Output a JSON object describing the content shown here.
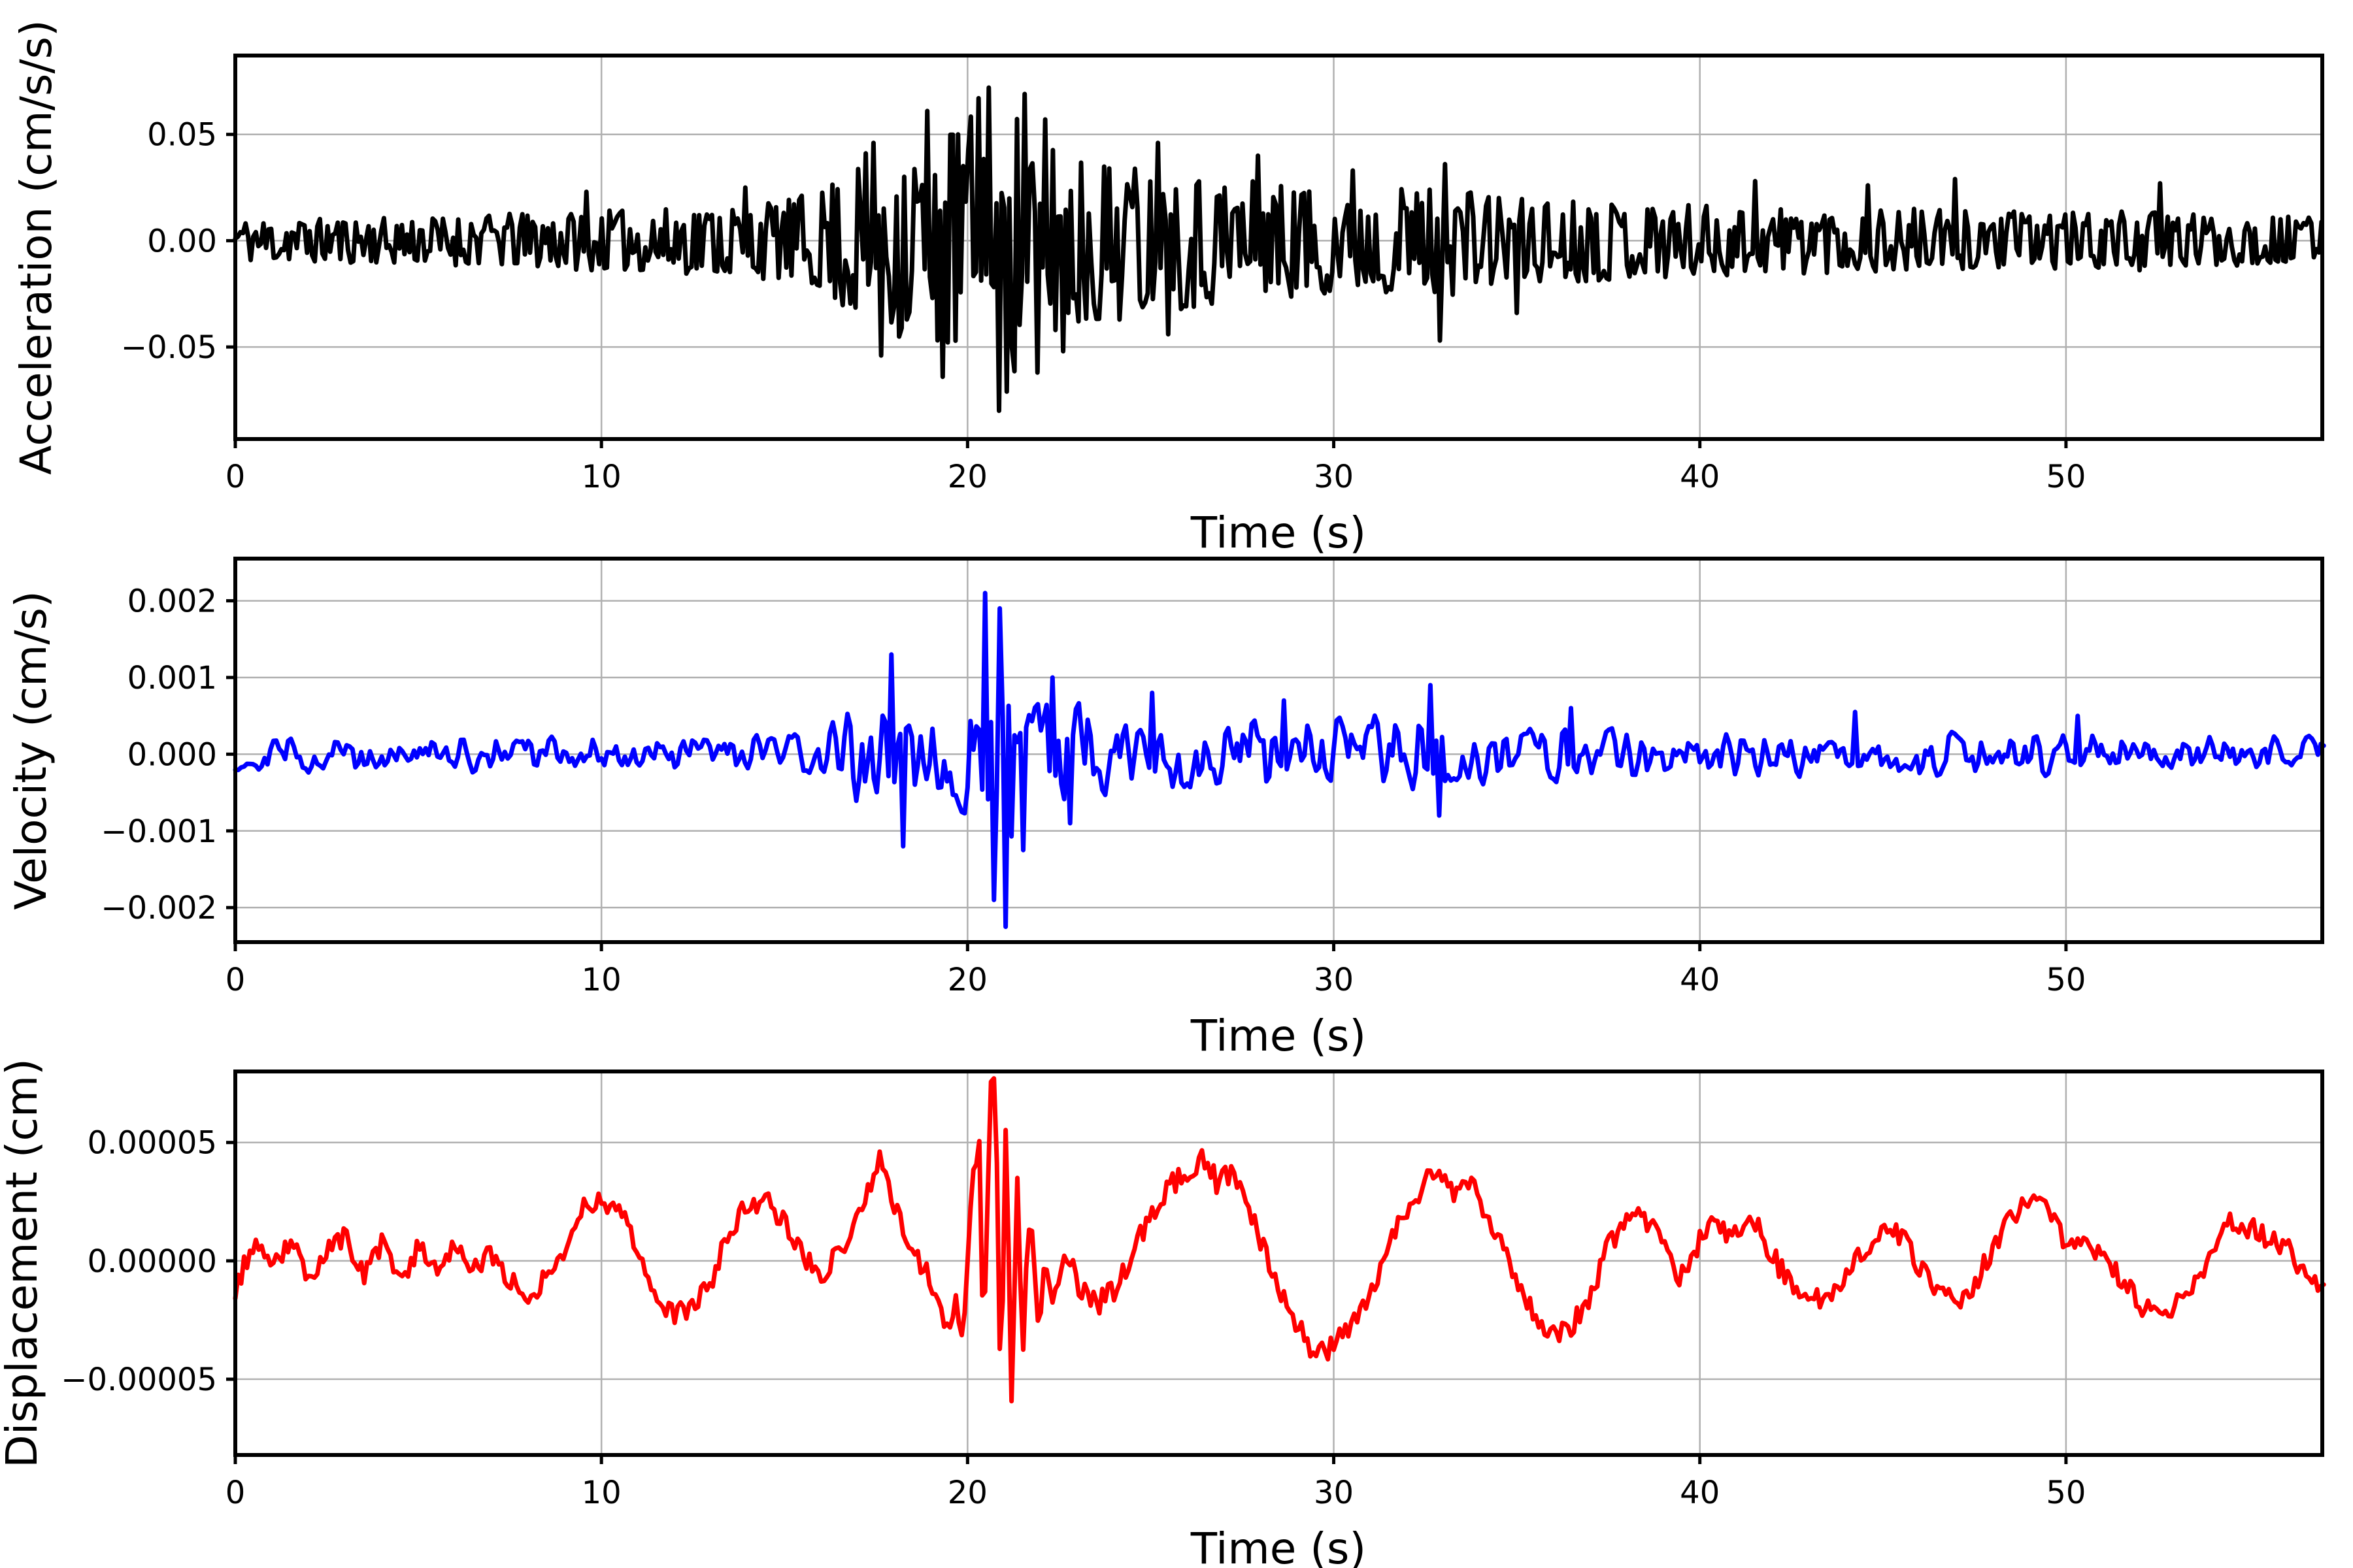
{
  "figure": {
    "background": "#ffffff",
    "grid_color": "#b0b0b0",
    "spine_color": "#000000",
    "text_color": "#000000"
  },
  "chart_data": [
    {
      "type": "line",
      "name": "acceleration",
      "color": "#000000",
      "xlabel": "Time (s)",
      "ylabel": "Acceleration (cm/s/s)",
      "xlim": [
        0,
        57
      ],
      "ylim": [
        -0.0933,
        0.0871
      ],
      "grid": true,
      "legend": "none",
      "xticks": [
        {
          "v": 0,
          "label": "0"
        },
        {
          "v": 10,
          "label": "10"
        },
        {
          "v": 20,
          "label": "20"
        },
        {
          "v": 30,
          "label": "30"
        },
        {
          "v": 40,
          "label": "40"
        },
        {
          "v": 50,
          "label": "50"
        }
      ],
      "yticks": [
        {
          "v": 0.05,
          "label": "0.05"
        },
        {
          "v": 0.0,
          "label": "0.00"
        },
        {
          "v": -0.05,
          "label": "−0.05"
        }
      ],
      "signal": {
        "kind": "noise-envelope",
        "dt": 0.07,
        "seed": 11,
        "shape_pow": 0.6,
        "smooth": 0,
        "envelope": [
          [
            0,
            0.01
          ],
          [
            5,
            0.011
          ],
          [
            8,
            0.013
          ],
          [
            10,
            0.014
          ],
          [
            13,
            0.016
          ],
          [
            15,
            0.019
          ],
          [
            16,
            0.024
          ],
          [
            16.8,
            0.036
          ],
          [
            17.5,
            0.045
          ],
          [
            18.5,
            0.047
          ],
          [
            19.5,
            0.055
          ],
          [
            20.2,
            0.062
          ],
          [
            20.7,
            0.07
          ],
          [
            21.2,
            0.064
          ],
          [
            21.8,
            0.054
          ],
          [
            22.5,
            0.047
          ],
          [
            23.5,
            0.04
          ],
          [
            24.5,
            0.036
          ],
          [
            25.5,
            0.033
          ],
          [
            26.5,
            0.031
          ],
          [
            27.5,
            0.03
          ],
          [
            28.5,
            0.027
          ],
          [
            29.5,
            0.026
          ],
          [
            31,
            0.024
          ],
          [
            32.5,
            0.026
          ],
          [
            33.2,
            0.027
          ],
          [
            34,
            0.022
          ],
          [
            36,
            0.02
          ],
          [
            38,
            0.018
          ],
          [
            40,
            0.017
          ],
          [
            42,
            0.016
          ],
          [
            44,
            0.015
          ],
          [
            46,
            0.015
          ],
          [
            48,
            0.014
          ],
          [
            50,
            0.013
          ],
          [
            52,
            0.014
          ],
          [
            54,
            0.012
          ],
          [
            57,
            0.011
          ]
        ],
        "spikes": [
          [
            9.6,
            0.023
          ],
          [
            13.9,
            0.025
          ],
          [
            17.4,
            0.046
          ],
          [
            17.65,
            -0.054
          ],
          [
            18.9,
            0.061
          ],
          [
            19.35,
            -0.064
          ],
          [
            20.3,
            0.067
          ],
          [
            20.55,
            0.072
          ],
          [
            20.85,
            -0.08
          ],
          [
            21.1,
            -0.071
          ],
          [
            21.55,
            0.069
          ],
          [
            21.9,
            -0.062
          ],
          [
            22.1,
            0.057
          ],
          [
            22.6,
            -0.052
          ],
          [
            25.2,
            0.046
          ],
          [
            25.45,
            -0.044
          ],
          [
            27.9,
            0.04
          ],
          [
            30.5,
            0.033
          ],
          [
            32.9,
            -0.047
          ],
          [
            33.05,
            0.036
          ],
          [
            35.0,
            -0.034
          ],
          [
            41.5,
            0.028
          ],
          [
            44.6,
            0.026
          ],
          [
            47.0,
            0.029
          ],
          [
            52.6,
            0.027
          ]
        ]
      }
    },
    {
      "type": "line",
      "name": "velocity",
      "color": "#0000ff",
      "xlabel": "Time (s)",
      "ylabel": "Velocity (cm/s)",
      "xlim": [
        0,
        57
      ],
      "ylim": [
        -0.00245,
        0.00255
      ],
      "grid": true,
      "legend": "none",
      "xticks": [
        {
          "v": 0,
          "label": "0"
        },
        {
          "v": 10,
          "label": "10"
        },
        {
          "v": 20,
          "label": "20"
        },
        {
          "v": 30,
          "label": "30"
        },
        {
          "v": 40,
          "label": "40"
        },
        {
          "v": 50,
          "label": "50"
        }
      ],
      "yticks": [
        {
          "v": 0.002,
          "label": "0.002"
        },
        {
          "v": 0.001,
          "label": "0.001"
        },
        {
          "v": 0.0,
          "label": "0.000"
        },
        {
          "v": -0.001,
          "label": "−0.001"
        },
        {
          "v": -0.002,
          "label": "−0.002"
        }
      ],
      "signal": {
        "kind": "noise-envelope",
        "dt": 0.08,
        "seed": 29,
        "shape_pow": 0.7,
        "smooth": 1,
        "envelope": [
          [
            0,
            0.0003
          ],
          [
            4,
            0.00028
          ],
          [
            8,
            0.00032
          ],
          [
            10,
            0.0003
          ],
          [
            12,
            0.00028
          ],
          [
            14,
            0.0003
          ],
          [
            15,
            0.00032
          ],
          [
            16,
            0.0004
          ],
          [
            16.5,
            0.0006
          ],
          [
            17,
            0.0008
          ],
          [
            18,
            0.00085
          ],
          [
            19,
            0.0008
          ],
          [
            19.8,
            0.0009
          ],
          [
            20.3,
            0.0015
          ],
          [
            20.6,
            0.0021
          ],
          [
            21.0,
            0.0023
          ],
          [
            21.3,
            0.0016
          ],
          [
            21.8,
            0.0011
          ],
          [
            22.5,
            0.0009
          ],
          [
            23,
            0.0008
          ],
          [
            24,
            0.0007
          ],
          [
            25,
            0.0006
          ],
          [
            26,
            0.00055
          ],
          [
            27,
            0.0005
          ],
          [
            28,
            0.00055
          ],
          [
            29,
            0.0006
          ],
          [
            30,
            0.0006
          ],
          [
            31,
            0.00058
          ],
          [
            32,
            0.0006
          ],
          [
            32.8,
            0.00075
          ],
          [
            33.5,
            0.00055
          ],
          [
            35,
            0.00045
          ],
          [
            37,
            0.00042
          ],
          [
            39,
            0.0004
          ],
          [
            41,
            0.0004
          ],
          [
            43,
            0.00038
          ],
          [
            45,
            0.00036
          ],
          [
            47,
            0.00036
          ],
          [
            49,
            0.00034
          ],
          [
            51,
            0.00034
          ],
          [
            53,
            0.00032
          ],
          [
            55,
            0.00032
          ],
          [
            57,
            0.0003
          ]
        ],
        "spikes": [
          [
            17.9,
            0.0013
          ],
          [
            18.25,
            -0.0012
          ],
          [
            20.45,
            0.0021
          ],
          [
            20.7,
            -0.0019
          ],
          [
            20.9,
            0.0019
          ],
          [
            21.05,
            -0.00225
          ],
          [
            21.5,
            -0.00125
          ],
          [
            22.3,
            0.001
          ],
          [
            22.8,
            -0.0009
          ],
          [
            25.0,
            0.0008
          ],
          [
            28.6,
            0.0007
          ],
          [
            32.6,
            0.0009
          ],
          [
            32.9,
            -0.0008
          ],
          [
            36.5,
            0.0006
          ],
          [
            44.2,
            0.00055
          ],
          [
            50.3,
            0.0005
          ]
        ]
      }
    },
    {
      "type": "line",
      "name": "displacement",
      "color": "#ff0000",
      "xlabel": "Time (s)",
      "ylabel": "Displacement (cm)",
      "xlim": [
        0,
        57
      ],
      "ylim": [
        -8.2e-05,
        8e-05
      ],
      "grid": true,
      "legend": "none",
      "xticks": [
        {
          "v": 0,
          "label": "0"
        },
        {
          "v": 10,
          "label": "10"
        },
        {
          "v": 20,
          "label": "20"
        },
        {
          "v": 30,
          "label": "30"
        },
        {
          "v": 40,
          "label": "40"
        },
        {
          "v": 50,
          "label": "50"
        }
      ],
      "yticks": [
        {
          "v": 5e-05,
          "label": "0.00005"
        },
        {
          "v": 0.0,
          "label": "0.00000"
        },
        {
          "v": -5e-05,
          "label": "−0.00005"
        }
      ],
      "signal": {
        "kind": "waypoints-ripple",
        "dt": 0.08,
        "seed": 53,
        "scale": 1e-05,
        "points": [
          [
            0,
            -1.2
          ],
          [
            0.5,
            0.8
          ],
          [
            1,
            -0.5
          ],
          [
            1.5,
            0.9
          ],
          [
            2,
            -0.8
          ],
          [
            2.5,
            0.5
          ],
          [
            3,
            1.0
          ],
          [
            3.5,
            -0.6
          ],
          [
            4,
            0.7
          ],
          [
            4.5,
            -0.9
          ],
          [
            5,
            0.6
          ],
          [
            5.5,
            -0.3
          ],
          [
            6,
            0.8
          ],
          [
            6.5,
            -0.5
          ],
          [
            7,
            0.3
          ],
          [
            7.5,
            -0.8
          ],
          [
            8,
            -1.5
          ],
          [
            8.5,
            -0.7
          ],
          [
            9,
            0.5
          ],
          [
            9.5,
            2.3
          ],
          [
            10,
            2.6
          ],
          [
            10.5,
            2.2
          ],
          [
            11,
            0.5
          ],
          [
            11.5,
            -1.5
          ],
          [
            12,
            -2.3
          ],
          [
            12.5,
            -2.0
          ],
          [
            13,
            -0.8
          ],
          [
            13.5,
            1.2
          ],
          [
            14,
            2.4
          ],
          [
            14.5,
            2.6
          ],
          [
            15,
            1.6
          ],
          [
            15.5,
            0.3
          ],
          [
            16,
            -0.6
          ],
          [
            16.5,
            0.4
          ],
          [
            17,
            1.8
          ],
          [
            17.6,
            4.4
          ],
          [
            18,
            2.2
          ],
          [
            18.5,
            0.6
          ],
          [
            19,
            -0.9
          ],
          [
            19.4,
            -2.8
          ],
          [
            19.7,
            -1.5
          ],
          [
            19.9,
            -3.0
          ],
          [
            20.1,
            2.0
          ],
          [
            20.3,
            5.8
          ],
          [
            20.45,
            -4.2
          ],
          [
            20.6,
            6.8
          ],
          [
            20.75,
            7.6
          ],
          [
            20.9,
            -5.3
          ],
          [
            21.05,
            5.6
          ],
          [
            21.2,
            -5.5
          ],
          [
            21.35,
            3.8
          ],
          [
            21.5,
            -3.6
          ],
          [
            21.7,
            2.2
          ],
          [
            21.9,
            -2.4
          ],
          [
            22.1,
            -0.4
          ],
          [
            22.4,
            -1.4
          ],
          [
            22.7,
            0.2
          ],
          [
            23,
            -1.0
          ],
          [
            23.5,
            -1.9
          ],
          [
            24,
            -1.3
          ],
          [
            24.5,
            0.3
          ],
          [
            25,
            1.8
          ],
          [
            25.5,
            3.2
          ],
          [
            26,
            3.6
          ],
          [
            26.4,
            4.4
          ],
          [
            26.8,
            3.3
          ],
          [
            27.2,
            3.6
          ],
          [
            27.6,
            2.6
          ],
          [
            28,
            0.8
          ],
          [
            28.5,
            -1.2
          ],
          [
            29,
            -2.8
          ],
          [
            29.6,
            -4.1
          ],
          [
            30,
            -3.4
          ],
          [
            30.5,
            -2.6
          ],
          [
            31,
            -1.4
          ],
          [
            31.5,
            0.6
          ],
          [
            32,
            2.2
          ],
          [
            32.7,
            3.8
          ],
          [
            33.2,
            3.0
          ],
          [
            33.8,
            3.1
          ],
          [
            34.2,
            1.8
          ],
          [
            34.6,
            0.8
          ],
          [
            35,
            -0.8
          ],
          [
            35.5,
            -2.2
          ],
          [
            36.1,
            -3.3
          ],
          [
            36.6,
            -2.5
          ],
          [
            37,
            -1.4
          ],
          [
            37.5,
            0.6
          ],
          [
            38.2,
            2.3
          ],
          [
            38.6,
            1.6
          ],
          [
            39,
            0.6
          ],
          [
            39.4,
            -0.9
          ],
          [
            40,
            0.9
          ],
          [
            40.4,
            2.0
          ],
          [
            40.8,
            1.1
          ],
          [
            41.2,
            1.5
          ],
          [
            41.6,
            1.3
          ],
          [
            42,
            0.2
          ],
          [
            42.5,
            -1.1
          ],
          [
            43,
            -1.7
          ],
          [
            43.5,
            -1.4
          ],
          [
            44,
            -0.8
          ],
          [
            44.5,
            0.6
          ],
          [
            45.2,
            1.5
          ],
          [
            45.6,
            0.9
          ],
          [
            46,
            -0.3
          ],
          [
            46.5,
            -1.3
          ],
          [
            47,
            -1.7
          ],
          [
            47.5,
            -1.0
          ],
          [
            48,
            0.6
          ],
          [
            48.5,
            1.8
          ],
          [
            49.2,
            2.7
          ],
          [
            49.6,
            1.9
          ],
          [
            50,
            0.8
          ],
          [
            50.5,
            0.6
          ],
          [
            51,
            0.3
          ],
          [
            51.5,
            -0.7
          ],
          [
            52,
            -1.8
          ],
          [
            52.5,
            -2.2
          ],
          [
            53,
            -1.9
          ],
          [
            53.5,
            -1.0
          ],
          [
            54,
            0.4
          ],
          [
            54.5,
            1.7
          ],
          [
            55,
            1.4
          ],
          [
            55.5,
            1.0
          ],
          [
            56,
            0.6
          ],
          [
            56.5,
            -0.4
          ],
          [
            57,
            -1.1
          ]
        ],
        "ripple": [
          [
            0,
            0.45
          ],
          [
            18,
            0.45
          ],
          [
            19.5,
            0.55
          ],
          [
            20,
            0.9
          ],
          [
            22,
            0.8
          ],
          [
            23,
            0.55
          ],
          [
            30,
            0.5
          ],
          [
            57,
            0.45
          ]
        ]
      }
    }
  ]
}
